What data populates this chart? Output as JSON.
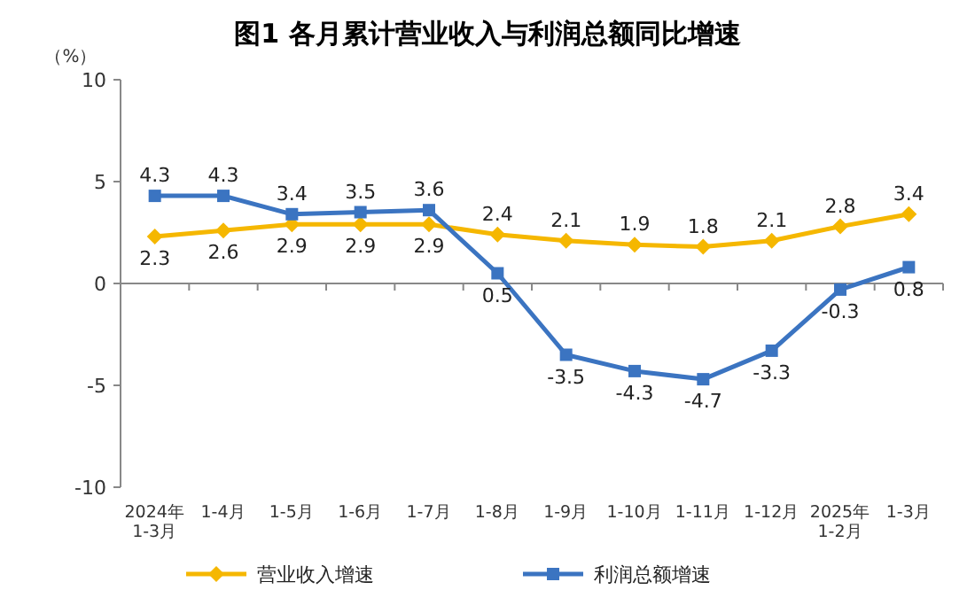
{
  "chart_data": {
    "type": "line",
    "title": "图1  各月累计营业收入与利润总额同比增速",
    "ylabel": "（%）",
    "categories": [
      "2024年\n1-3月",
      "1-4月",
      "1-5月",
      "1-6月",
      "1-7月",
      "1-8月",
      "1-9月",
      "1-10月",
      "1-11月",
      "1-12月",
      "2025年\n1-2月",
      "1-3月"
    ],
    "series": [
      {
        "name": "营业收入增速",
        "color": "#f5b700",
        "marker": "diamond",
        "values": [
          2.3,
          2.6,
          2.9,
          2.9,
          2.9,
          2.4,
          2.1,
          1.9,
          1.8,
          2.1,
          2.8,
          3.4
        ]
      },
      {
        "name": "利润总额增速",
        "color": "#3b74c1",
        "marker": "square",
        "values": [
          4.3,
          4.3,
          3.4,
          3.5,
          3.6,
          0.5,
          -3.5,
          -4.3,
          -4.7,
          -3.3,
          -0.3,
          0.8
        ]
      }
    ],
    "ylim": [
      -10,
      10
    ],
    "yticks": [
      -10,
      -5,
      0,
      5,
      10
    ],
    "data_labels": true,
    "legend": "bottom"
  }
}
